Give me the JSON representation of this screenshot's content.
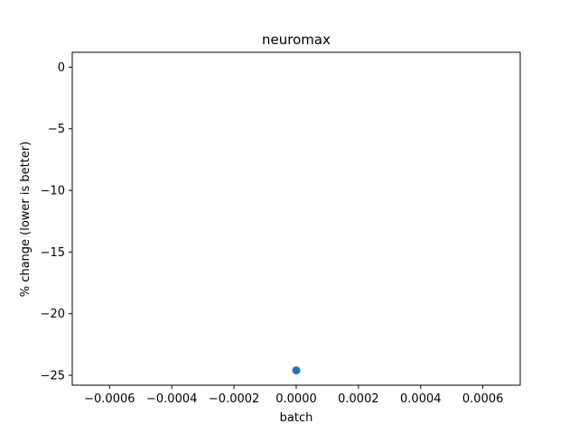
{
  "chart_data": {
    "type": "scatter",
    "title": "neuromax",
    "xlabel": "batch",
    "ylabel": "% change (lower is better)",
    "xlim": [
      -0.00072,
      0.00072
    ],
    "ylim": [
      -25.8,
      1.2
    ],
    "xticks": [
      -0.0006,
      -0.0004,
      -0.0002,
      0.0,
      0.0002,
      0.0004,
      0.0006
    ],
    "xtick_labels": [
      "−0.0006",
      "−0.0004",
      "−0.0002",
      "0.0000",
      "0.0002",
      "0.0004",
      "0.0006"
    ],
    "yticks": [
      0,
      -5,
      -10,
      -15,
      -20,
      -25
    ],
    "ytick_labels": [
      "0",
      "−5",
      "−10",
      "−15",
      "−20",
      "−25"
    ],
    "grid": false,
    "series": [
      {
        "x": [
          0.0
        ],
        "y": [
          -24.6
        ],
        "color": "#1f77b4"
      }
    ]
  }
}
